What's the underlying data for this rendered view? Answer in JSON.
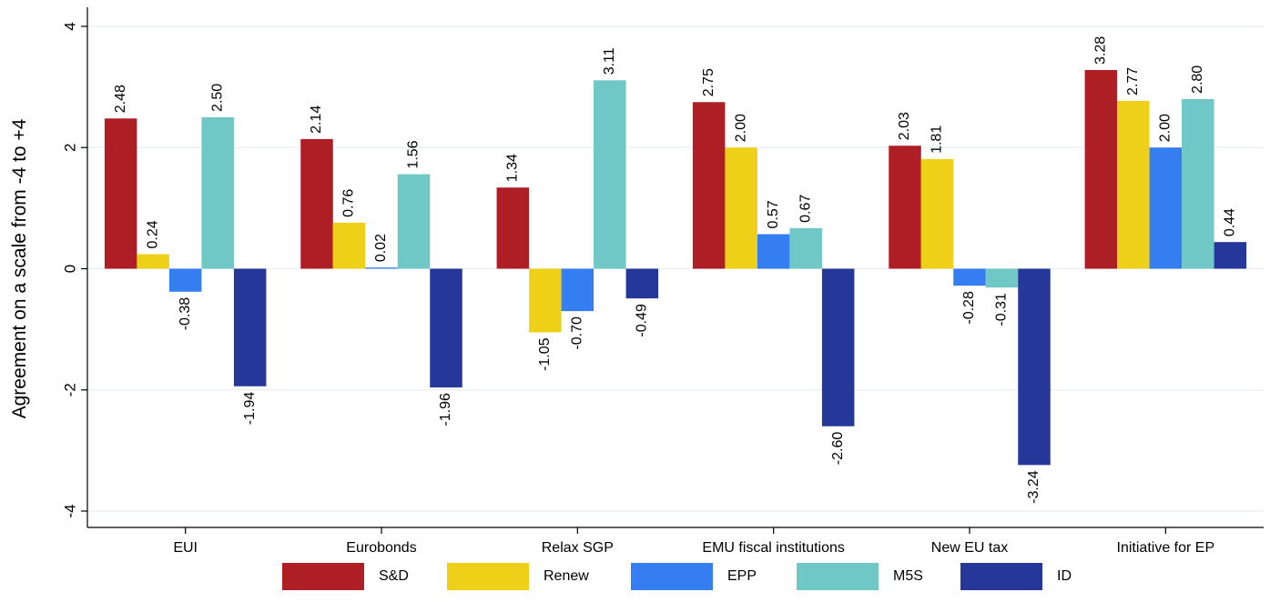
{
  "chart_data": {
    "type": "bar",
    "ylabel": "Agreement on a scale from -4 to +4",
    "xlabel": "",
    "ylim": [
      -4,
      4
    ],
    "yticks": [
      "-4",
      "-2",
      "0",
      "2",
      "4"
    ],
    "grid": true,
    "legend_position": "bottom",
    "categories": [
      "EUI",
      "Eurobonds",
      "Relax SGP",
      "EMU fiscal institutions",
      "New EU tax",
      "Initiative for EP"
    ],
    "series": [
      {
        "name": "S&D",
        "color": "#ad1f24",
        "values": [
          2.48,
          2.14,
          1.34,
          2.75,
          2.03,
          3.28
        ],
        "labels": [
          "2.48",
          "2.14",
          "1.34",
          "2.75",
          "2.03",
          "3.28"
        ]
      },
      {
        "name": "Renew",
        "color": "#efd018",
        "values": [
          0.24,
          0.76,
          -1.05,
          2.0,
          1.81,
          2.77
        ],
        "labels": [
          "0.24",
          "0.76",
          "-1.05",
          "2.00",
          "1.81",
          "2.77"
        ]
      },
      {
        "name": "EPP",
        "color": "#357ef1",
        "values": [
          -0.38,
          0.02,
          -0.7,
          0.57,
          -0.28,
          2.0
        ],
        "labels": [
          "-0.38",
          "0.02",
          "-0.70",
          "0.57",
          "-0.28",
          "2.00"
        ]
      },
      {
        "name": "M5S",
        "color": "#6fc8c6",
        "values": [
          2.5,
          1.56,
          3.11,
          0.67,
          -0.31,
          2.8
        ],
        "labels": [
          "2.50",
          "1.56",
          "3.11",
          "0.67",
          "-0.31",
          "2.80"
        ]
      },
      {
        "name": "ID",
        "color": "#253798",
        "values": [
          -1.94,
          -1.96,
          -0.49,
          -2.6,
          -3.24,
          0.44
        ],
        "labels": [
          "-1.94",
          "-1.96",
          "-0.49",
          "-2.60",
          "-3.24",
          "0.44"
        ]
      }
    ]
  }
}
